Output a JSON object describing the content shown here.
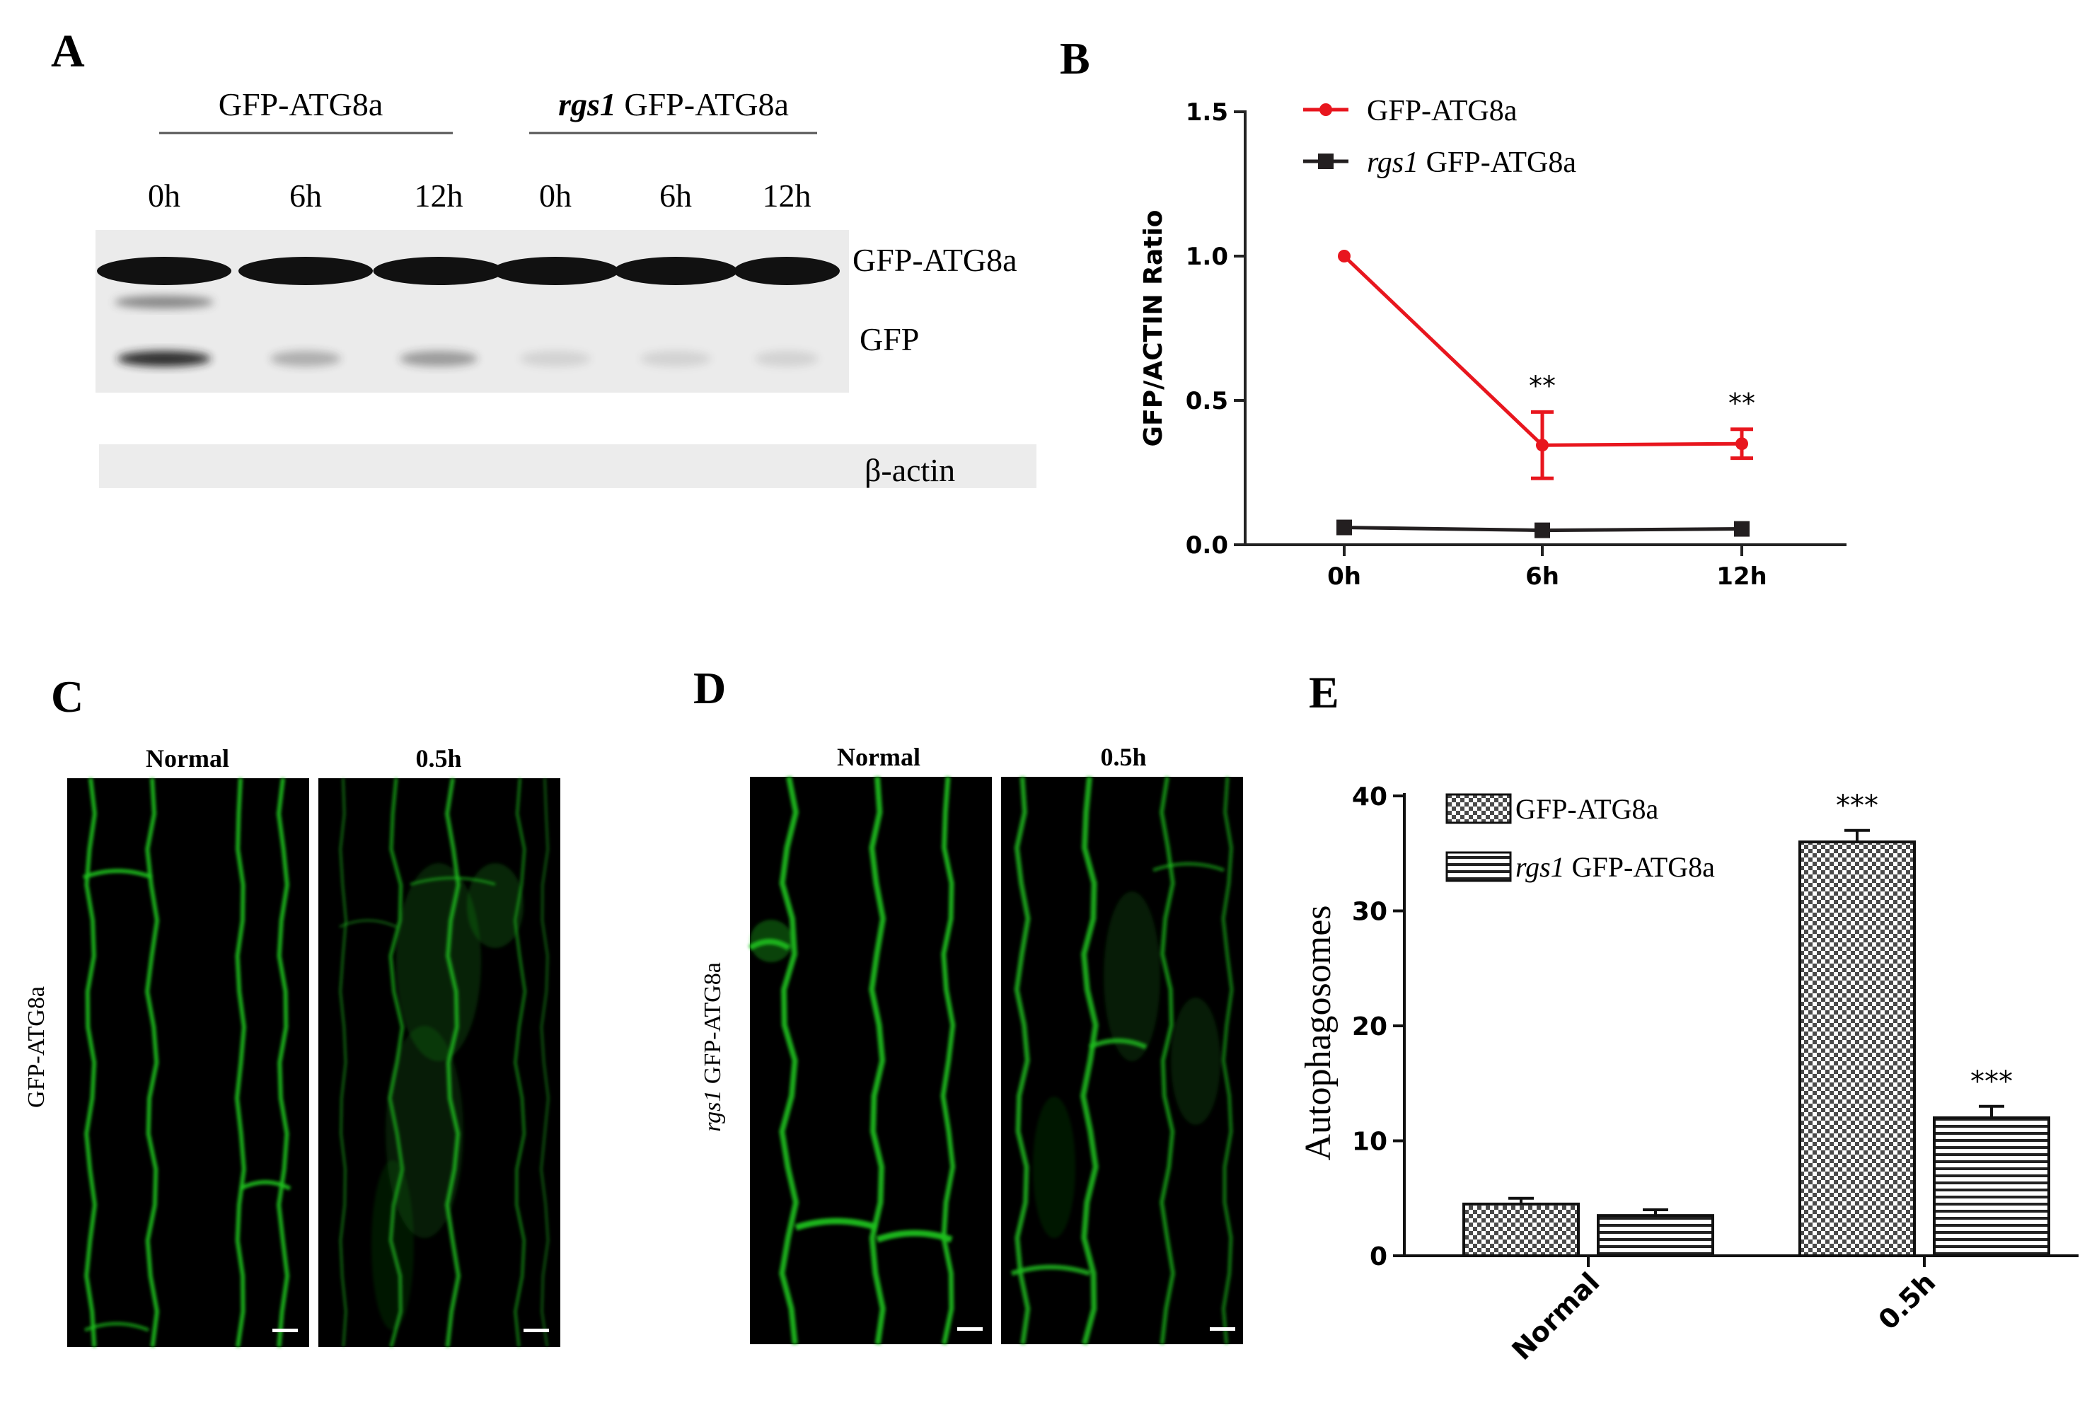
{
  "panels": {
    "a": "A",
    "b": "B",
    "c": "C",
    "d": "D",
    "e": "E"
  },
  "panel_a": {
    "group1": "GFP-ATG8a",
    "group2_italic": "rgs1",
    "group2_rest": " GFP-ATG8a",
    "lanes": [
      "0h",
      "6h",
      "12h",
      "0h",
      "6h",
      "12h"
    ],
    "band_labels": [
      "GFP-ATG8a",
      "GFP",
      "β-actin"
    ]
  },
  "panel_c": {
    "col_labels": [
      "Normal",
      "0.5h"
    ],
    "row_label": "GFP-ATG8a"
  },
  "panel_d": {
    "col_labels": [
      "Normal",
      "0.5h"
    ],
    "row_label_italic": "rgs1",
    "row_label_rest": " GFP-ATG8a"
  },
  "colors": {
    "red_series": "#e8161e",
    "black_series": "#231f20",
    "fluorescence": "#1fbf1f"
  },
  "chart_data": [
    {
      "type": "line",
      "panel": "B",
      "categories": [
        "0h",
        "6h",
        "12h"
      ],
      "ylabel": "GFP/ACTIN Ratio",
      "xlabel": "",
      "ylim": [
        0,
        1.5
      ],
      "yticks": [
        "0.0",
        "0.5",
        "1.0",
        "1.5"
      ],
      "series": [
        {
          "name": "GFP-ATG8a",
          "values": [
            1.0,
            0.345,
            0.35
          ],
          "errors": [
            0,
            0.115,
            0.05
          ],
          "annotations": [
            "",
            "**",
            "**"
          ]
        },
        {
          "name_italic": "rgs1",
          "name_rest": " GFP-ATG8a",
          "values": [
            0.06,
            0.05,
            0.055
          ],
          "errors": [
            0,
            0,
            0
          ]
        }
      ],
      "legend": "top-left",
      "grid": false
    },
    {
      "type": "bar",
      "panel": "E",
      "categories": [
        "Normal",
        "0.5h"
      ],
      "ylabel": "Autophagosomes",
      "xlabel": "",
      "ylim": [
        0,
        40
      ],
      "yticks": [
        "0",
        "10",
        "20",
        "30",
        "40"
      ],
      "series": [
        {
          "name": "GFP-ATG8a",
          "values": [
            4.5,
            36
          ],
          "errors": [
            0.5,
            1
          ],
          "annotations": [
            "",
            "***"
          ]
        },
        {
          "name_italic": "rgs1",
          "name_rest": "  GFP-ATG8a",
          "values": [
            3.5,
            12
          ],
          "errors": [
            0.5,
            1
          ],
          "annotations": [
            "",
            "***"
          ]
        }
      ],
      "legend": "top-left",
      "grid": false
    }
  ]
}
